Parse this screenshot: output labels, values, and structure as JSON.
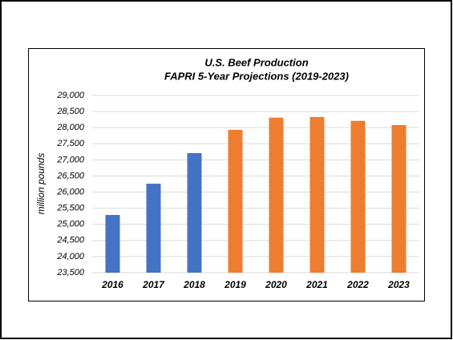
{
  "chart_data": {
    "type": "bar",
    "title": "U.S. Beef Production",
    "subtitle": "FAPRI 5-Year Projections (2019-2023)",
    "y_label": "million pounds",
    "categories": [
      "2016",
      "2017",
      "2018",
      "2019",
      "2020",
      "2021",
      "2022",
      "2023"
    ],
    "values": [
      25290,
      26260,
      27210,
      27930,
      28310,
      28330,
      28210,
      28080
    ],
    "colors": [
      "#4472c4",
      "#4472c4",
      "#4472c4",
      "#ed7d31",
      "#ed7d31",
      "#ed7d31",
      "#ed7d31",
      "#ed7d31"
    ],
    "ylim": [
      23500,
      29000
    ],
    "yticks": [
      {
        "value": 23500,
        "label": "23,500"
      },
      {
        "value": 24000,
        "label": "24,000"
      },
      {
        "value": 24500,
        "label": "24,500"
      },
      {
        "value": 25000,
        "label": "25,000"
      },
      {
        "value": 25500,
        "label": "25,500"
      },
      {
        "value": 26000,
        "label": "26,000"
      },
      {
        "value": 26500,
        "label": "26,500"
      },
      {
        "value": 27000,
        "label": "27,000"
      },
      {
        "value": 27500,
        "label": "27,500"
      },
      {
        "value": 28000,
        "label": "28,000"
      },
      {
        "value": 28500,
        "label": "28,500"
      },
      {
        "value": 29000,
        "label": "29,000"
      }
    ],
    "grid": true
  }
}
